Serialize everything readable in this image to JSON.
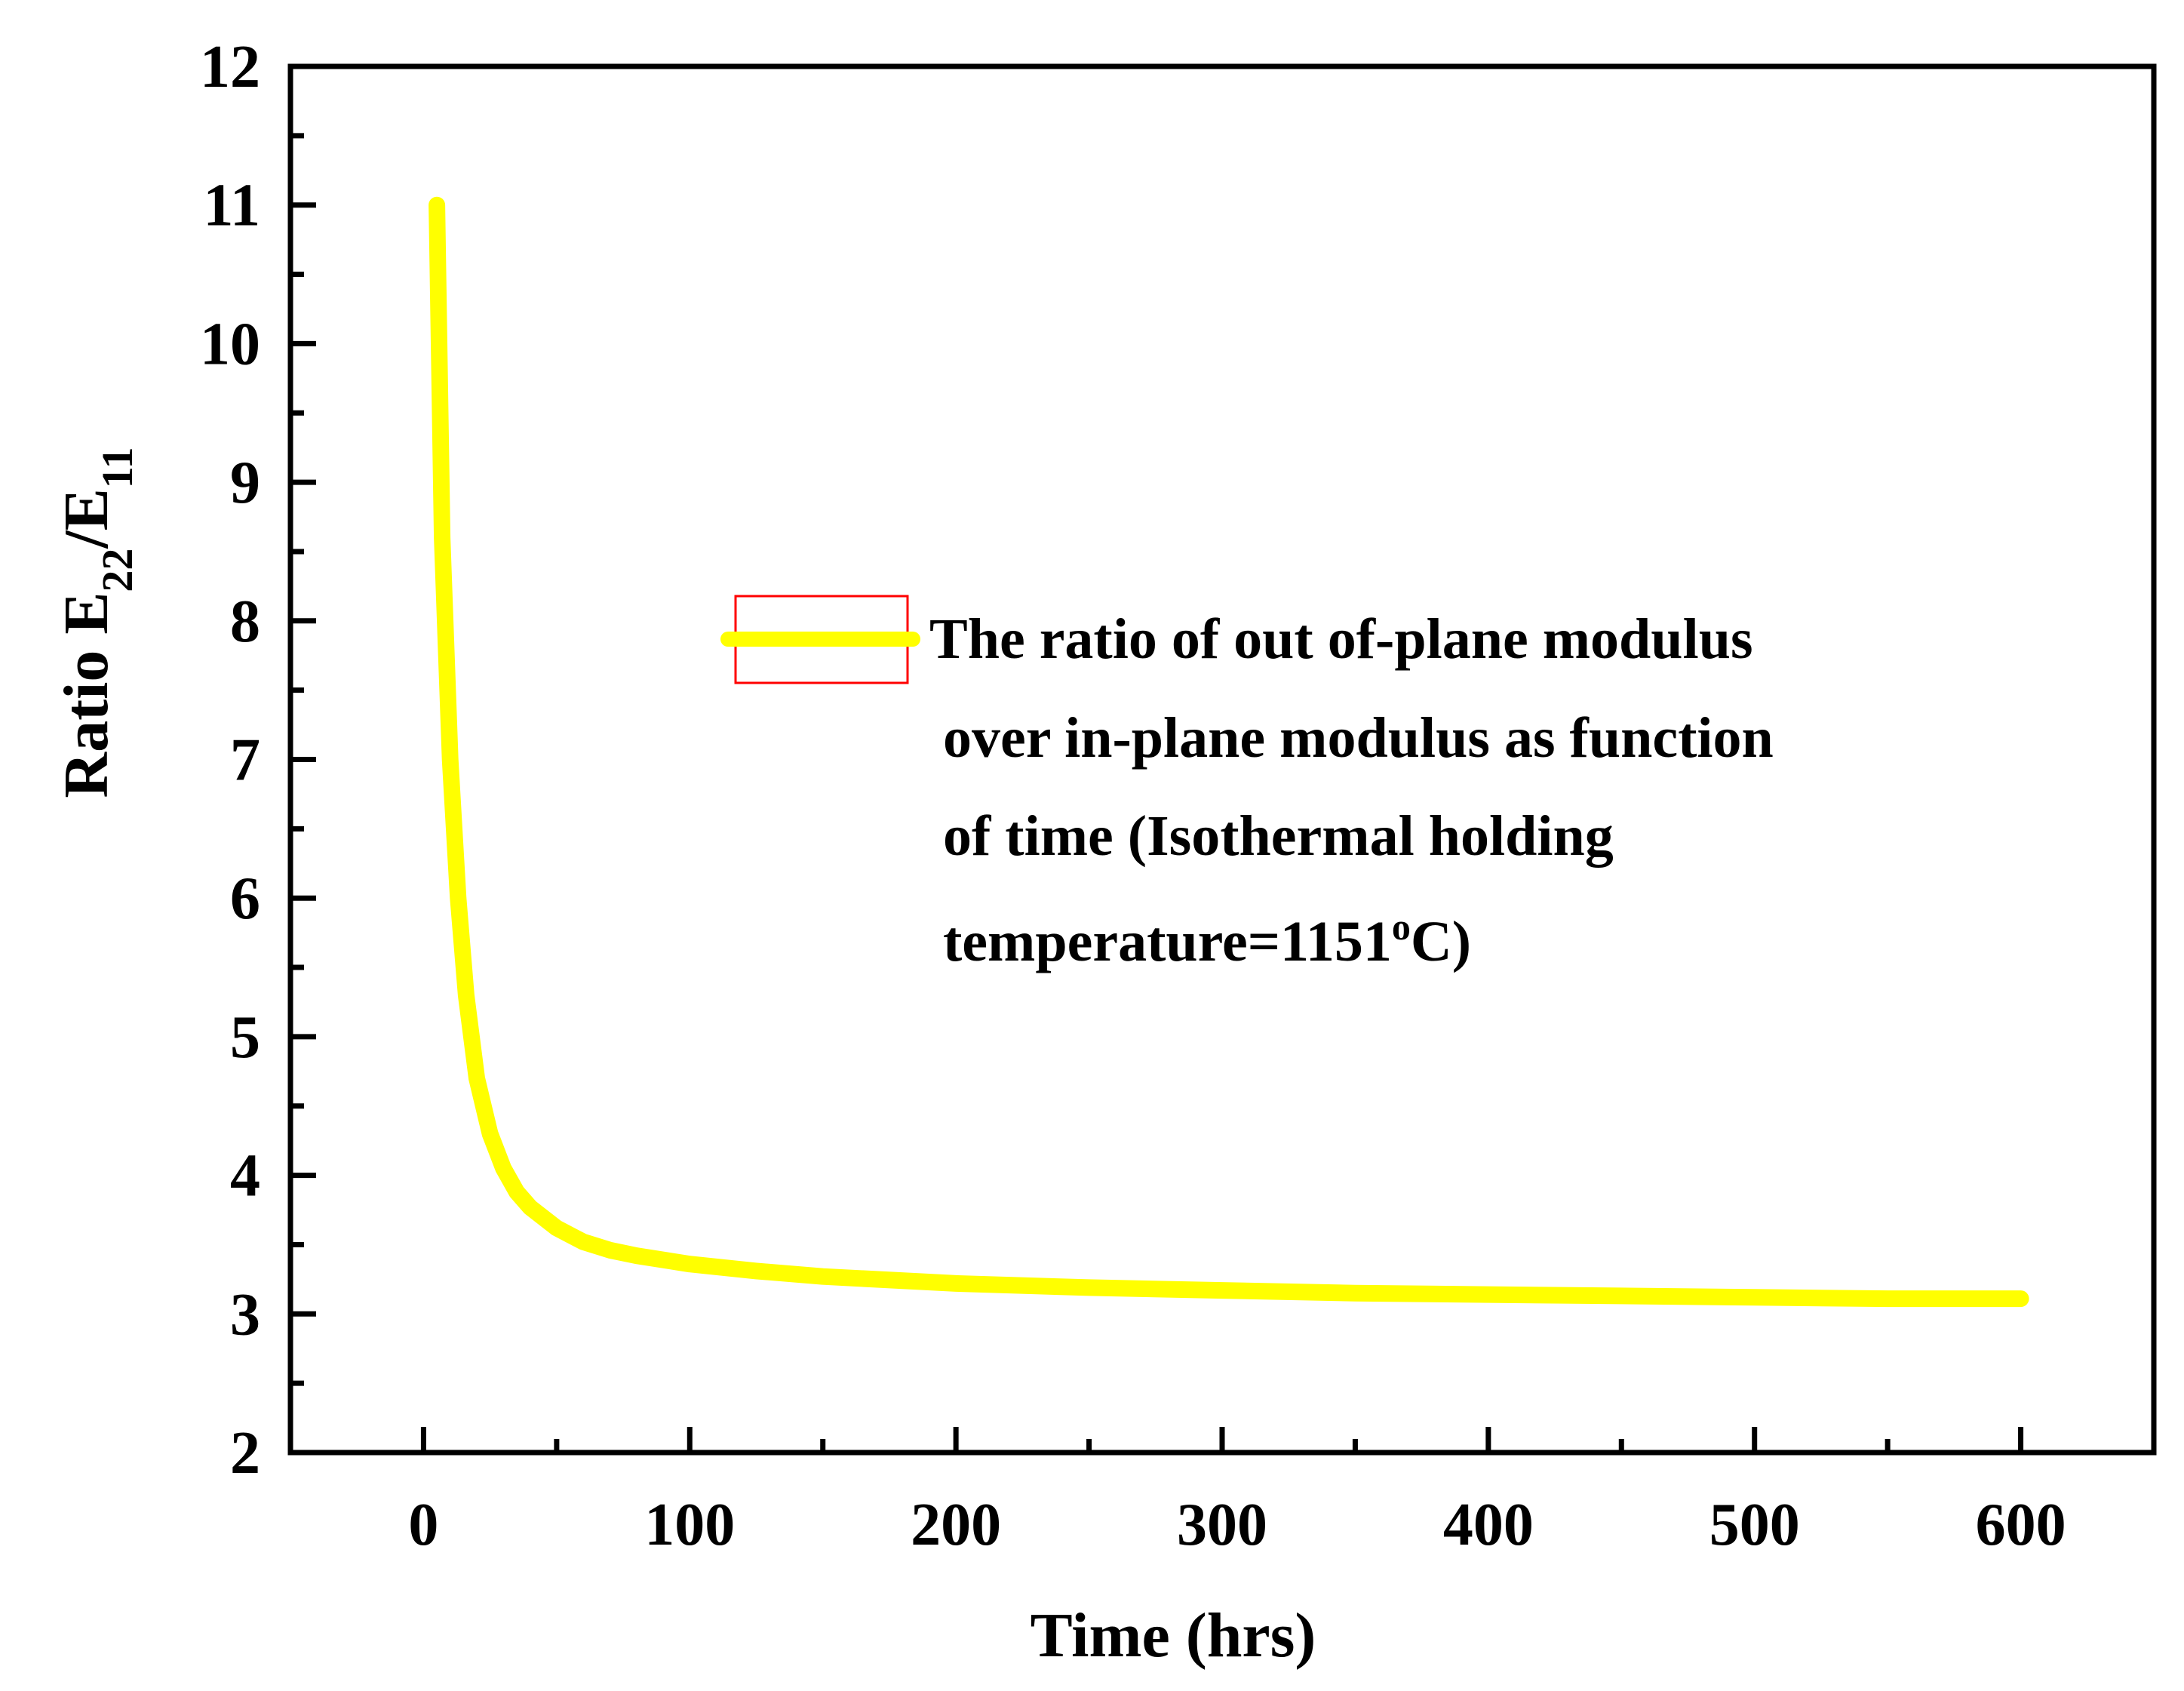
{
  "chart_data": {
    "type": "line",
    "title": "",
    "xlabel": "Time (hrs)",
    "ylabel": {
      "prefix": "Ratio E",
      "sub1": "22",
      "mid": "/E",
      "sub2": "11"
    },
    "xlim": [
      -50,
      650
    ],
    "ylim": [
      2,
      12
    ],
    "x_ticks": [
      0,
      100,
      200,
      300,
      400,
      500,
      600
    ],
    "y_ticks": [
      2,
      3,
      4,
      5,
      6,
      7,
      8,
      9,
      10,
      11,
      12
    ],
    "x_tick_labels": [
      "0",
      "100",
      "200",
      "300",
      "400",
      "500",
      "600"
    ],
    "y_tick_labels": [
      "2",
      "3",
      "4",
      "5",
      "6",
      "7",
      "8",
      "9",
      "10",
      "11",
      "12"
    ],
    "grid": false,
    "legend_position": "center-right",
    "series": [
      {
        "name": "The ratio of out of-plane modulus over in-plane modulus as function of time (Isothermal holding temperature=1151°C)",
        "color": "#ffff00",
        "x": [
          5,
          7,
          10,
          13,
          16,
          20,
          25,
          30,
          35,
          40,
          50,
          60,
          70,
          80,
          100,
          125,
          150,
          200,
          250,
          300,
          350,
          400,
          450,
          500,
          550,
          600
        ],
        "y": [
          11.0,
          8.6,
          7.0,
          6.0,
          5.3,
          4.7,
          4.3,
          4.05,
          3.88,
          3.77,
          3.62,
          3.52,
          3.46,
          3.42,
          3.36,
          3.31,
          3.27,
          3.22,
          3.19,
          3.17,
          3.15,
          3.14,
          3.13,
          3.12,
          3.11,
          3.11
        ]
      }
    ]
  },
  "legend": {
    "lines": [
      "The ratio of out of-plane modulus",
      "over in-plane modulus as function",
      "of time (Isothermal holding",
      "temperature=1151"
    ],
    "degree": "o",
    "tail": "C)"
  },
  "colors": {
    "line": "#ffff00",
    "axis": "#000000",
    "legend_box": "#ff0000"
  }
}
